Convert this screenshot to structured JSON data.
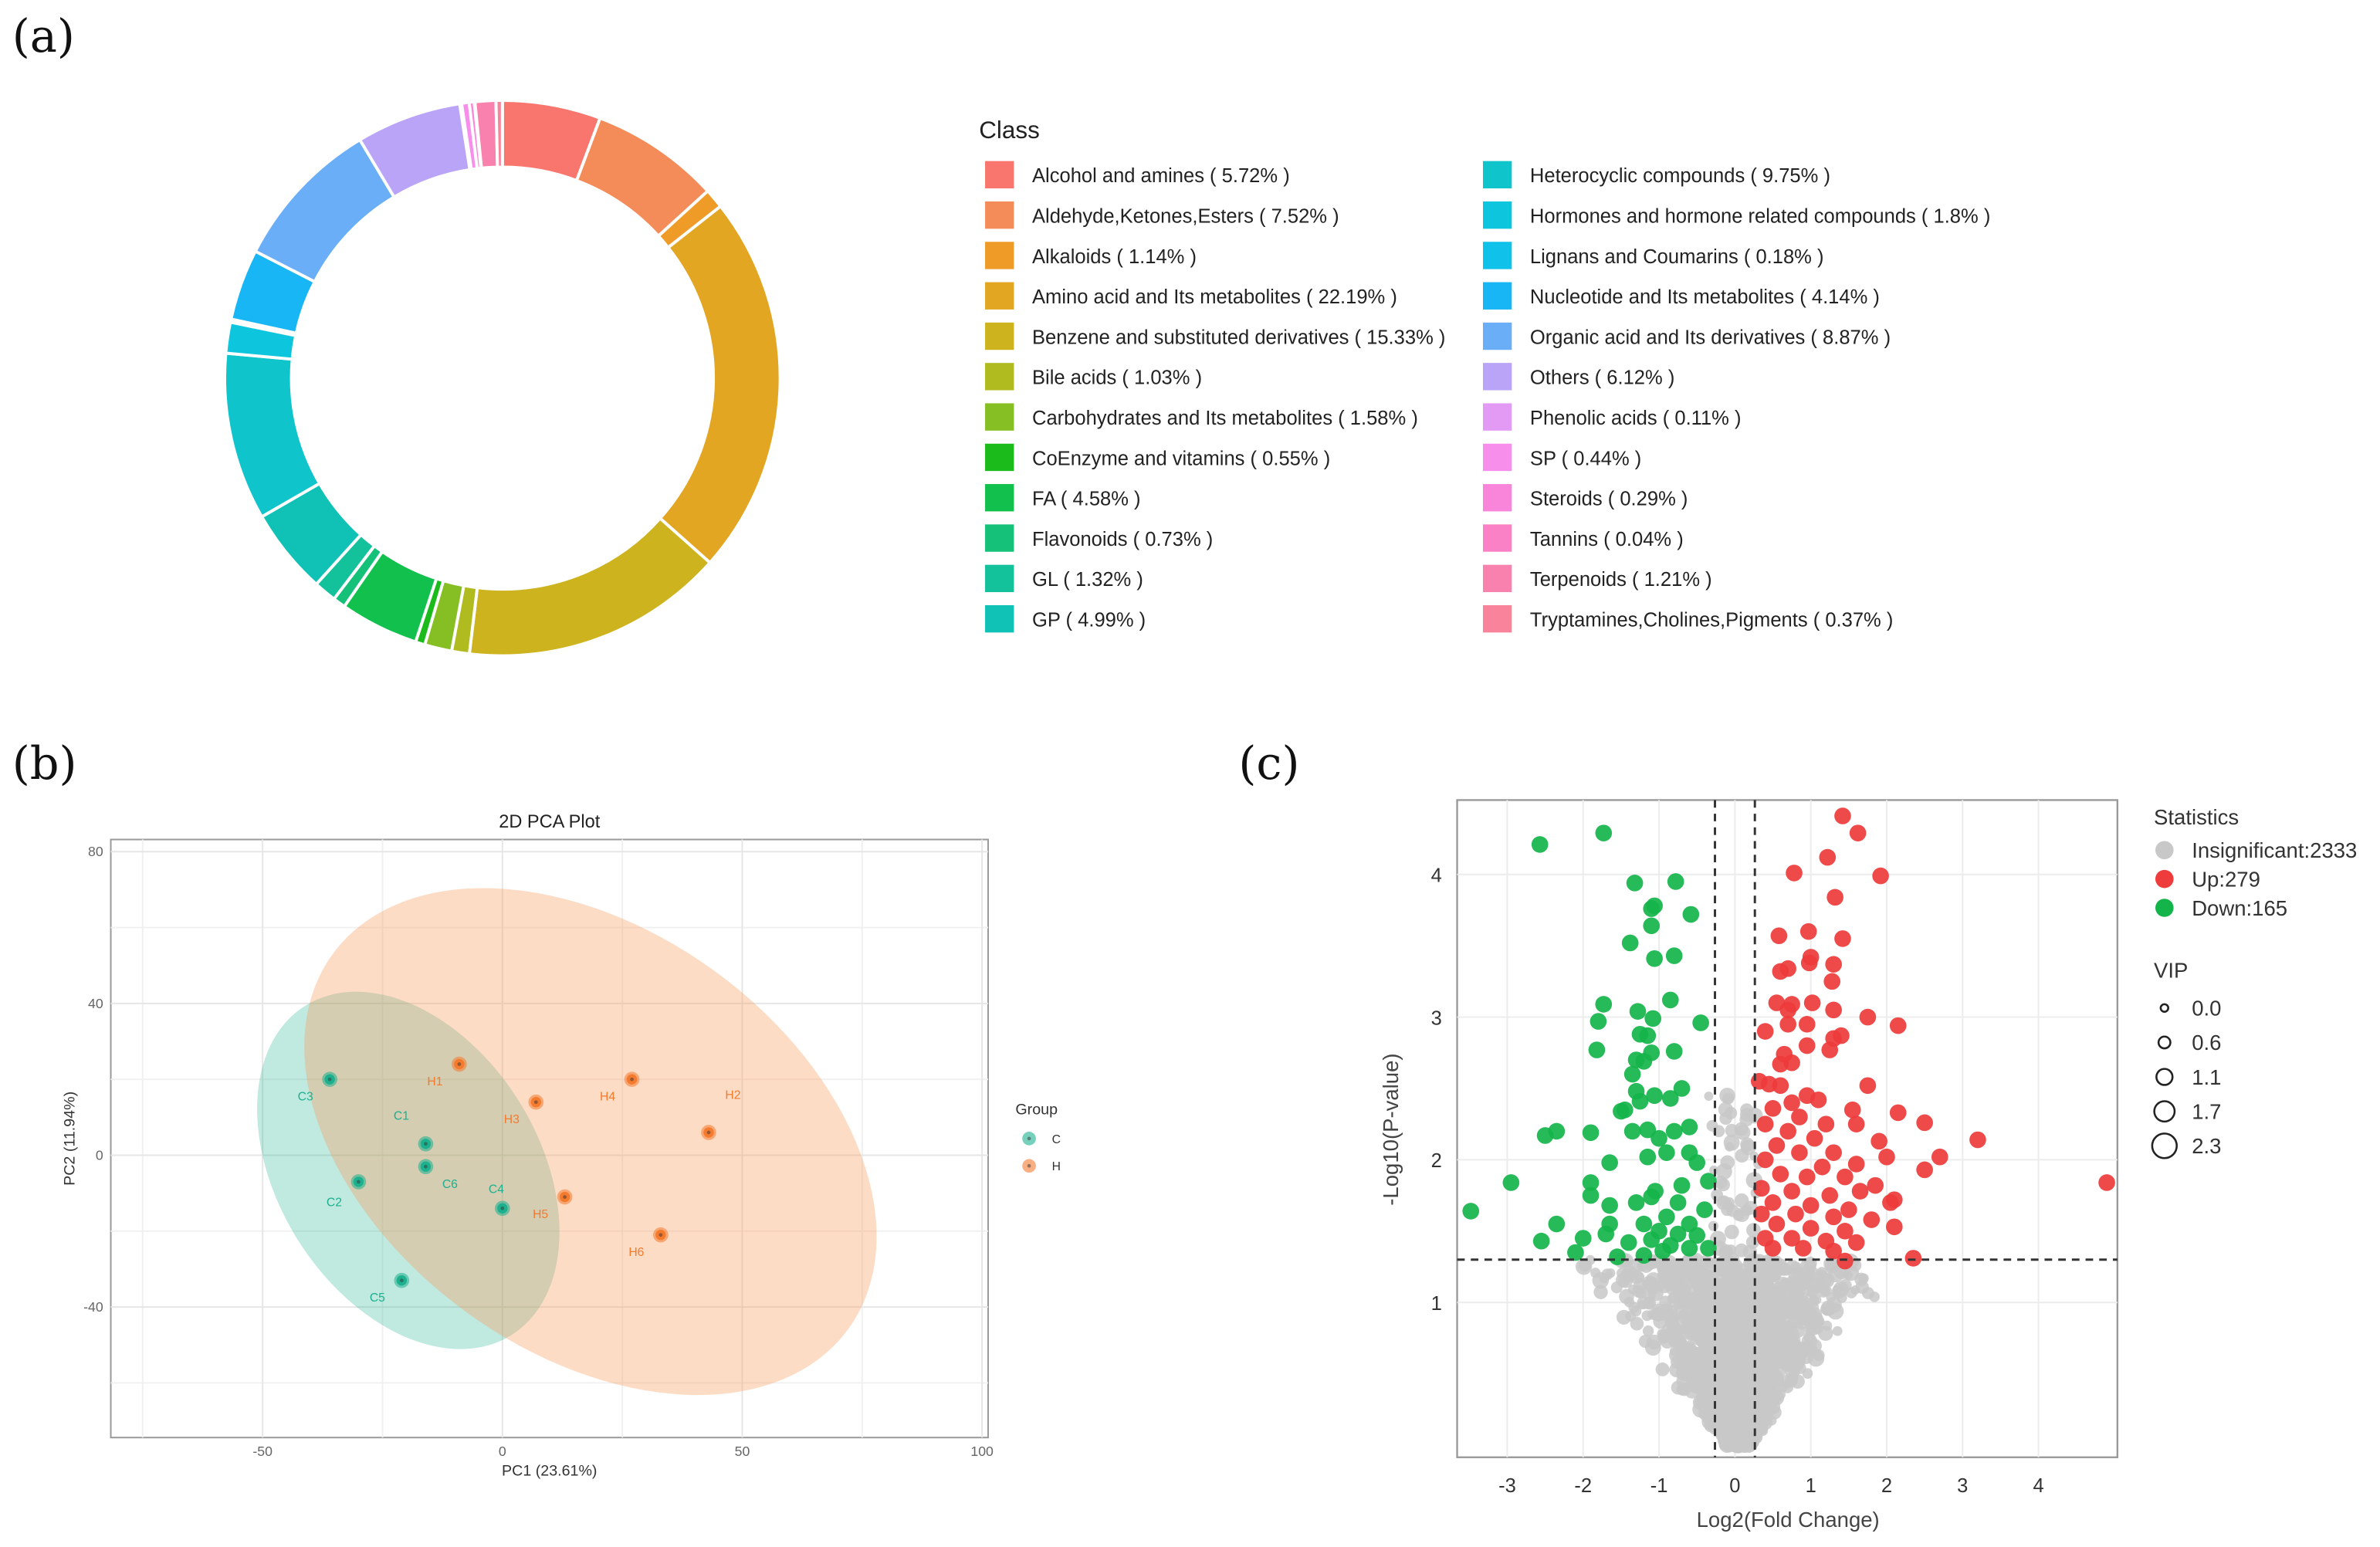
{
  "panels": {
    "a": "(a)",
    "b": "(b)",
    "c": "(c)"
  },
  "chart_data": [
    {
      "type": "pie",
      "variant": "donut",
      "legend_title": "Class",
      "legend_placement": "right",
      "slices": [
        {
          "label": "Alcohol and amines",
          "value": 5.72,
          "display": "Alcohol and amines ( 5.72% )",
          "color": "#F8766D"
        },
        {
          "label": "Aldehyde,Ketones,Esters",
          "value": 7.52,
          "display": "Aldehyde,Ketones,Esters ( 7.52% )",
          "color": "#F48C5A"
        },
        {
          "label": "Alkaloids",
          "value": 1.14,
          "display": "Alkaloids ( 1.14% )",
          "color": "#EE9B28"
        },
        {
          "label": "Amino acid and Its metabolites",
          "value": 22.19,
          "display": "Amino acid and Its metabolites ( 22.19% )",
          "color": "#E2A623"
        },
        {
          "label": "Benzene and substituted derivatives",
          "value": 15.33,
          "display": "Benzene and substituted derivatives ( 15.33% )",
          "color": "#CDB31E"
        },
        {
          "label": "Bile acids",
          "value": 1.03,
          "display": "Bile acids ( 1.03% )",
          "color": "#AFBB1E"
        },
        {
          "label": "Carbohydrates and Its metabolites",
          "value": 1.58,
          "display": "Carbohydrates and Its metabolites ( 1.58% )",
          "color": "#86BF24"
        },
        {
          "label": "CoEnzyme and vitamins",
          "value": 0.55,
          "display": "CoEnzyme and vitamins ( 0.55% )",
          "color": "#1BBB1B"
        },
        {
          "label": "FA",
          "value": 4.58,
          "display": "FA ( 4.58% )",
          "color": "#12C04E"
        },
        {
          "label": "Flavonoids",
          "value": 0.73,
          "display": "Flavonoids ( 0.73% )",
          "color": "#15C178"
        },
        {
          "label": "GL",
          "value": 1.32,
          "display": "GL ( 1.32% )",
          "color": "#13C19A"
        },
        {
          "label": "GP",
          "value": 4.99,
          "display": "GP ( 4.99% )",
          "color": "#10C2B6"
        },
        {
          "label": "Heterocyclic compounds",
          "value": 9.75,
          "display": "Heterocyclic compounds ( 9.75% )",
          "color": "#10C4CC"
        },
        {
          "label": "Hormones and hormone related compounds",
          "value": 1.8,
          "display": "Hormones and hormone related compounds ( 1.8% )",
          "color": "#0DC6DD"
        },
        {
          "label": "Lignans and Coumarins",
          "value": 0.18,
          "display": "Lignans and Coumarins ( 0.18% )",
          "color": "#10C1EA"
        },
        {
          "label": "Nucleotide and Its metabolites",
          "value": 4.14,
          "display": "Nucleotide and Its metabolites ( 4.14% )",
          "color": "#18B6F4"
        },
        {
          "label": "Organic acid and Its derivatives",
          "value": 8.87,
          "display": "Organic acid and Its derivatives ( 8.87% )",
          "color": "#6AAEF8"
        },
        {
          "label": "Others",
          "value": 6.12,
          "display": "Others ( 6.12% )",
          "color": "#B9A4F8"
        },
        {
          "label": "Phenolic acids",
          "value": 0.11,
          "display": "Phenolic acids ( 0.11% )",
          "color": "#E29AF5"
        },
        {
          "label": "SP",
          "value": 0.44,
          "display": "SP ( 0.44% )",
          "color": "#F88EEB"
        },
        {
          "label": "Steroids",
          "value": 0.29,
          "display": "Steroids ( 0.29% )",
          "color": "#F985DB"
        },
        {
          "label": "Tannins",
          "value": 0.04,
          "display": "Tannins ( 0.04% )",
          "color": "#FA81C6"
        },
        {
          "label": "Terpenoids",
          "value": 1.21,
          "display": "Terpenoids ( 1.21% )",
          "color": "#F981AE"
        },
        {
          "label": "Tryptamines,Cholines,Pigments",
          "value": 0.37,
          "display": "Tryptamines,Cholines,Pigments ( 0.37% )",
          "color": "#F8839A"
        }
      ]
    },
    {
      "type": "scatter",
      "title": "2D PCA Plot",
      "xlabel": "PC1 (23.61%)",
      "ylabel": "PC2 (11.94%)",
      "xlim": [
        -75,
        100
      ],
      "ylim": [
        -60,
        83
      ],
      "xticks": [
        -50,
        0,
        50,
        100
      ],
      "yticks": [
        80,
        40,
        0,
        -40
      ],
      "grid": true,
      "legend_title": "Group",
      "legend_placement": "right",
      "groups": [
        {
          "name": "C",
          "color": "#1DB08E"
        },
        {
          "name": "H",
          "color": "#F47A2E"
        }
      ],
      "points": [
        {
          "label": "C1",
          "group": "C",
          "x": -16,
          "y": 3
        },
        {
          "label": "C2",
          "group": "C",
          "x": -30,
          "y": -7
        },
        {
          "label": "C3",
          "group": "C",
          "x": -36,
          "y": 20
        },
        {
          "label": "C4",
          "group": "C",
          "x": 0,
          "y": -14
        },
        {
          "label": "C5",
          "group": "C",
          "x": -21,
          "y": -33
        },
        {
          "label": "C6",
          "group": "C",
          "x": -16,
          "y": -3
        },
        {
          "label": "H1",
          "group": "H",
          "x": -9,
          "y": 24
        },
        {
          "label": "H2",
          "group": "H",
          "x": 43,
          "y": 6
        },
        {
          "label": "H3",
          "group": "H",
          "x": 7,
          "y": 14
        },
        {
          "label": "H4",
          "group": "H",
          "x": 27,
          "y": 20
        },
        {
          "label": "H5",
          "group": "H",
          "x": 13,
          "y": -11
        },
        {
          "label": "H6",
          "group": "H",
          "x": 33,
          "y": -21
        }
      ]
    },
    {
      "type": "scatter",
      "variant": "volcano",
      "xlabel": "Log2(Fold Change)",
      "ylabel": "-Log10(P-value)",
      "xlim": [
        -3.65,
        5.05
      ],
      "ylim": [
        -0.08,
        4.5
      ],
      "xticks": [
        -3,
        -2,
        -1,
        0,
        1,
        2,
        3,
        4
      ],
      "yticks": [
        1,
        2,
        3,
        4
      ],
      "thresholds": {
        "x": [
          -0.263,
          0.263
        ],
        "y": 1.3
      },
      "legend_title": "Statistics",
      "legend_placement": "right",
      "categories": [
        {
          "name": "Insignificant",
          "count": 2333,
          "display": "Insignificant:2333",
          "color": "#C8C8C8"
        },
        {
          "name": "Up",
          "count": 279,
          "display": "Up:279",
          "color": "#EE3B3B"
        },
        {
          "name": "Down",
          "count": 165,
          "display": "Down:165",
          "color": "#13B44A"
        }
      ],
      "size_legend_title": "VIP",
      "size_legend": [
        "0.0",
        "0.6",
        "1.1",
        "1.7",
        "2.3"
      ],
      "highlight_points": {
        "down": [
          [
            -2.57,
            4.21
          ],
          [
            -1.73,
            4.29
          ],
          [
            -1.32,
            3.94
          ],
          [
            -0.78,
            3.95
          ],
          [
            -1.06,
            3.78
          ],
          [
            -1.1,
            3.76
          ],
          [
            -0.58,
            3.72
          ],
          [
            -1.1,
            3.64
          ],
          [
            -1.38,
            3.52
          ],
          [
            -0.8,
            3.43
          ],
          [
            -1.06,
            3.41
          ],
          [
            -0.85,
            3.12
          ],
          [
            -1.73,
            3.09
          ],
          [
            -1.28,
            3.04
          ],
          [
            -1.8,
            2.97
          ],
          [
            -1.08,
            2.99
          ],
          [
            -0.45,
            2.96
          ],
          [
            -1.25,
            2.88
          ],
          [
            -1.15,
            2.87
          ],
          [
            -1.82,
            2.77
          ],
          [
            -0.8,
            2.76
          ],
          [
            -1.1,
            2.75
          ],
          [
            -1.3,
            2.7
          ],
          [
            -1.2,
            2.69
          ],
          [
            -1.35,
            2.6
          ],
          [
            -0.7,
            2.5
          ],
          [
            -1.3,
            2.48
          ],
          [
            -1.06,
            2.45
          ],
          [
            -0.85,
            2.43
          ],
          [
            -1.25,
            2.41
          ],
          [
            -1.5,
            2.34
          ],
          [
            -1.45,
            2.35
          ],
          [
            -1.35,
            2.2
          ],
          [
            -1.15,
            2.21
          ],
          [
            -2.35,
            2.2
          ],
          [
            -2.5,
            2.17
          ],
          [
            -1.9,
            2.19
          ],
          [
            -0.6,
            2.23
          ],
          [
            -0.8,
            2.2
          ],
          [
            -1.0,
            2.15
          ],
          [
            -0.9,
            2.05
          ],
          [
            -0.6,
            2.05
          ],
          [
            -1.15,
            2.02
          ],
          [
            -1.65,
            1.98
          ],
          [
            -0.5,
            1.98
          ],
          [
            -1.9,
            1.84
          ],
          [
            -2.95,
            1.84
          ],
          [
            -0.7,
            1.82
          ],
          [
            -0.35,
            1.85
          ],
          [
            -1.05,
            1.78
          ],
          [
            -1.9,
            1.75
          ],
          [
            -1.1,
            1.74
          ],
          [
            -3.48,
            1.64
          ],
          [
            -1.65,
            1.68
          ],
          [
            -1.3,
            1.7
          ],
          [
            -0.75,
            1.7
          ],
          [
            -0.4,
            1.65
          ],
          [
            -2.35,
            1.55
          ],
          [
            -1.65,
            1.55
          ],
          [
            -1.2,
            1.55
          ],
          [
            -0.9,
            1.6
          ],
          [
            -0.6,
            1.55
          ],
          [
            -1.7,
            1.48
          ],
          [
            -1.0,
            1.5
          ],
          [
            -0.75,
            1.48
          ],
          [
            -0.5,
            1.47
          ],
          [
            -2.55,
            1.43
          ],
          [
            -2.0,
            1.45
          ],
          [
            -1.4,
            1.42
          ],
          [
            -1.1,
            1.44
          ],
          [
            -0.85,
            1.4
          ],
          [
            -0.6,
            1.38
          ],
          [
            -0.35,
            1.38
          ],
          [
            -2.1,
            1.35
          ],
          [
            -1.55,
            1.32
          ],
          [
            -1.2,
            1.33
          ],
          [
            -0.95,
            1.36
          ]
        ],
        "up": [
          [
            1.42,
            4.41
          ],
          [
            1.62,
            4.29
          ],
          [
            1.22,
            4.12
          ],
          [
            0.78,
            4.01
          ],
          [
            1.92,
            3.99
          ],
          [
            1.32,
            3.84
          ],
          [
            0.58,
            3.57
          ],
          [
            0.97,
            3.6
          ],
          [
            1.42,
            3.55
          ],
          [
            1.0,
            3.42
          ],
          [
            0.98,
            3.38
          ],
          [
            1.3,
            3.37
          ],
          [
            0.6,
            3.32
          ],
          [
            0.7,
            3.34
          ],
          [
            1.28,
            3.25
          ],
          [
            0.55,
            3.1
          ],
          [
            0.75,
            3.09
          ],
          [
            1.02,
            3.1
          ],
          [
            0.7,
            3.05
          ],
          [
            1.3,
            3.05
          ],
          [
            1.75,
            3.0
          ],
          [
            0.4,
            2.9
          ],
          [
            0.7,
            2.95
          ],
          [
            0.95,
            2.95
          ],
          [
            2.15,
            2.94
          ],
          [
            1.4,
            2.87
          ],
          [
            1.3,
            2.85
          ],
          [
            0.65,
            2.74
          ],
          [
            0.95,
            2.8
          ],
          [
            1.25,
            2.77
          ],
          [
            0.6,
            2.67
          ],
          [
            0.75,
            2.68
          ],
          [
            0.32,
            2.55
          ],
          [
            0.45,
            2.53
          ],
          [
            0.6,
            2.52
          ],
          [
            1.75,
            2.52
          ],
          [
            0.95,
            2.45
          ],
          [
            1.1,
            2.42
          ],
          [
            0.75,
            2.4
          ],
          [
            0.5,
            2.36
          ],
          [
            1.55,
            2.35
          ],
          [
            2.15,
            2.33
          ],
          [
            2.5,
            2.26
          ],
          [
            0.85,
            2.3
          ],
          [
            1.2,
            2.25
          ],
          [
            0.4,
            2.25
          ],
          [
            1.6,
            2.25
          ],
          [
            0.7,
            2.2
          ],
          [
            1.05,
            2.15
          ],
          [
            1.9,
            2.13
          ],
          [
            3.2,
            2.14
          ],
          [
            0.55,
            2.1
          ],
          [
            0.85,
            2.05
          ],
          [
            1.3,
            2.05
          ],
          [
            2.7,
            2.02
          ],
          [
            2.0,
            2.02
          ],
          [
            0.4,
            2.0
          ],
          [
            1.15,
            1.95
          ],
          [
            1.6,
            1.97
          ],
          [
            2.5,
            1.93
          ],
          [
            0.6,
            1.9
          ],
          [
            0.95,
            1.88
          ],
          [
            1.45,
            1.88
          ],
          [
            1.85,
            1.82
          ],
          [
            4.9,
            1.84
          ],
          [
            0.35,
            1.8
          ],
          [
            1.65,
            1.78
          ],
          [
            0.75,
            1.78
          ],
          [
            1.25,
            1.75
          ],
          [
            2.1,
            1.72
          ],
          [
            2.05,
            1.7
          ],
          [
            0.5,
            1.7
          ],
          [
            1.0,
            1.68
          ],
          [
            1.5,
            1.65
          ],
          [
            0.35,
            1.62
          ],
          [
            0.8,
            1.62
          ],
          [
            1.3,
            1.6
          ],
          [
            1.8,
            1.58
          ],
          [
            2.1,
            1.53
          ],
          [
            0.55,
            1.55
          ],
          [
            1.0,
            1.52
          ],
          [
            1.45,
            1.5
          ],
          [
            0.4,
            1.45
          ],
          [
            0.75,
            1.45
          ],
          [
            1.2,
            1.43
          ],
          [
            1.6,
            1.42
          ],
          [
            0.5,
            1.38
          ],
          [
            0.9,
            1.38
          ],
          [
            1.3,
            1.36
          ],
          [
            2.35,
            1.31
          ],
          [
            1.45,
            1.29
          ]
        ]
      }
    }
  ]
}
